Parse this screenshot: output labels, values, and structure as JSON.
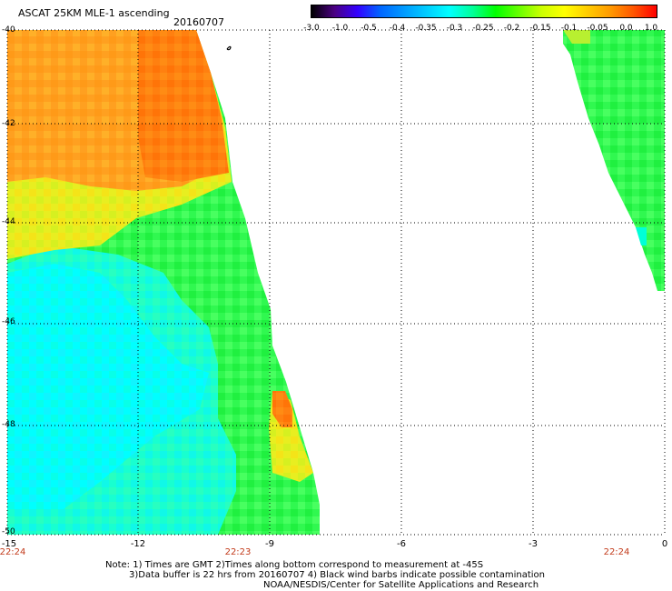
{
  "header": {
    "title": "ASCAT 25KM MLE-1 ascending",
    "date": "20160707"
  },
  "colorbar": {
    "labels": [
      "-3.0",
      "-1.0",
      "-0.5",
      "-0.4",
      "-0.35",
      "-0.3",
      "-0.25",
      "-0.2",
      "-0.15",
      "-0.1",
      "-0.05",
      "0.0",
      "1.0"
    ],
    "colors": [
      "#000000",
      "#4b0082",
      "#3300ff",
      "#0066ff",
      "#0099ff",
      "#00ccff",
      "#00ffff",
      "#00ff99",
      "#00ff00",
      "#66ff00",
      "#ccff00",
      "#ffff00",
      "#ffcc00",
      "#ff9900",
      "#ff5500",
      "#ff0000"
    ]
  },
  "axes": {
    "y_labels": [
      "-40",
      "-42",
      "-44",
      "-46",
      "-48",
      "-50"
    ],
    "x_labels": [
      "-15",
      "-12",
      "-9",
      "-6",
      "-3",
      "0"
    ],
    "lat_range": [
      -50,
      -40
    ],
    "lon_range": [
      -15,
      0
    ]
  },
  "times": [
    "22:24",
    "22:23",
    "22:24"
  ],
  "notes": [
    "Note: 1) Times are GMT 2)Times along bottom correspond to measurement at -45S",
    "3)Data buffer is 22 hrs from 20160707 4) Black wind barbs indicate possible contamination",
    "NOAA/NESDIS/Center for Satellite Applications and Research"
  ]
}
